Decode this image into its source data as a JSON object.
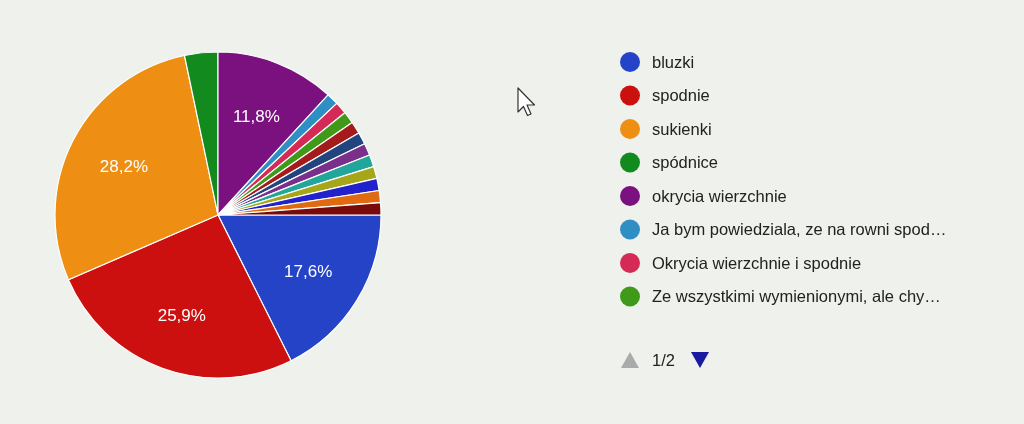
{
  "chart_data": {
    "type": "pie",
    "categories": [
      "bluzki",
      "spodnie",
      "sukienki",
      "spódnice",
      "okrycia wierzchnie",
      "Ja bym powiedziala, ze na rowni spod…",
      "Okrycia wierzchnie i spodnie",
      "Ze wszystkimi wymienionymi, ale chy…",
      null,
      null,
      null,
      null,
      null,
      null,
      null,
      null
    ],
    "values": [
      17.6,
      25.9,
      28.2,
      3.3,
      11.8,
      1.2,
      1.2,
      1.2,
      1.2,
      1.2,
      1.2,
      1.2,
      1.2,
      1.2,
      1.2,
      1.2
    ],
    "colors": [
      "#2443c6",
      "#cc1010",
      "#ee8f14",
      "#138a1d",
      "#7a117e",
      "#2f8ec4",
      "#d42a55",
      "#3f9a1a",
      "#a51a1a",
      "#23457f",
      "#7a2f8a",
      "#22a59a",
      "#a6a61a",
      "#2222cc",
      "#e06a10",
      "#7a0a0a"
    ],
    "value_labels": [
      "17,6%",
      "25,9%",
      "28,2%",
      null,
      "11,8%",
      null,
      null,
      null,
      null,
      null,
      null,
      null,
      null,
      null,
      null,
      null
    ],
    "legend": "right",
    "annotations": [
      "1/2"
    ]
  }
}
